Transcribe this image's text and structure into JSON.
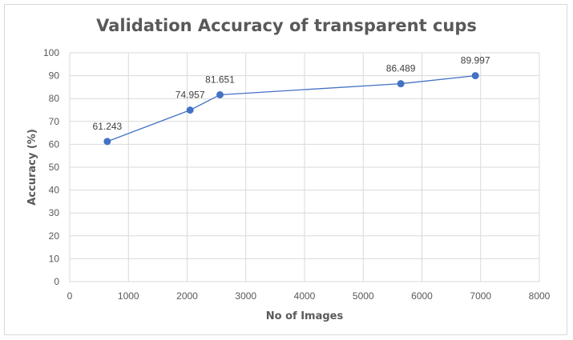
{
  "chart_data": {
    "type": "scatter",
    "title": "Validation Accuracy of transparent cups",
    "xlabel": "No of Images",
    "ylabel": "Accuracy (%)",
    "xlim": [
      0,
      8000
    ],
    "ylim": [
      0,
      100
    ],
    "xticks": [
      0,
      1000,
      2000,
      3000,
      4000,
      5000,
      6000,
      7000,
      8000
    ],
    "yticks": [
      0,
      10,
      20,
      30,
      40,
      50,
      60,
      70,
      80,
      90,
      100
    ],
    "grid": true,
    "legend": "none",
    "line_style": "straight lines with markers",
    "series": [
      {
        "x": [
          640,
          2050,
          2560,
          5640,
          6910
        ],
        "y": [
          61.243,
          74.957,
          81.651,
          86.489,
          89.997
        ],
        "labels": [
          "61.243",
          "74.957",
          "81.651",
          "86.489",
          "89.997"
        ]
      }
    ],
    "colors": {
      "series": "#4472c4",
      "grid": "#d9d9d9",
      "axis_text": "#595959"
    }
  }
}
